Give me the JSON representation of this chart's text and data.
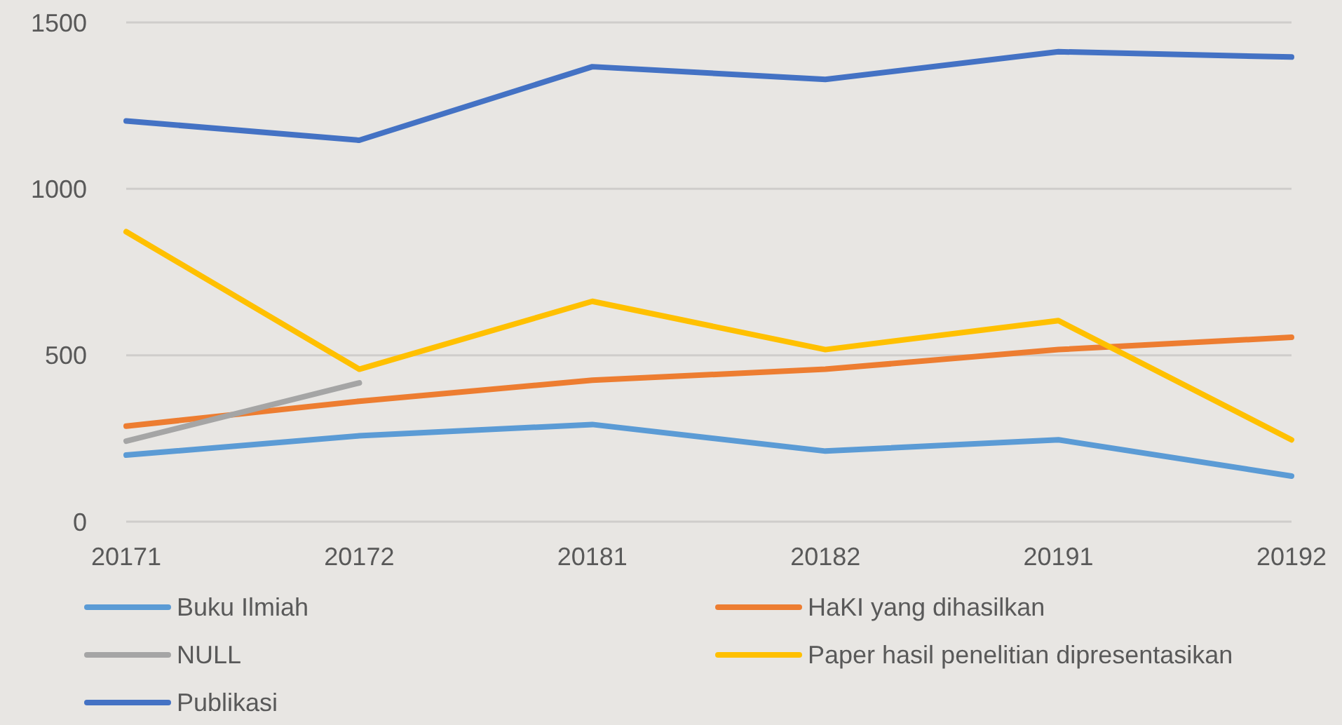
{
  "chart_data": {
    "type": "line",
    "categories": [
      "20171",
      "20172",
      "20181",
      "20182",
      "20191",
      "20192"
    ],
    "series": [
      {
        "name": "Buku Ilmiah",
        "color": "#5b9bd5",
        "values": [
          200,
          258,
          292,
          212,
          246,
          137
        ]
      },
      {
        "name": "HaKI yang dihasilkan",
        "color": "#ed7d31",
        "values": [
          287,
          362,
          425,
          458,
          517,
          554
        ]
      },
      {
        "name": "NULL",
        "color": "#a5a5a5",
        "values": [
          242,
          417,
          null,
          null,
          null,
          null
        ]
      },
      {
        "name": "Paper hasil penelitian dipresentasikan",
        "color": "#ffc000",
        "values": [
          871,
          458,
          662,
          517,
          604,
          246
        ]
      },
      {
        "name": "Publikasi",
        "color": "#4472c4",
        "values": [
          1204,
          1146,
          1367,
          1329,
          1412,
          1396
        ]
      }
    ],
    "ylim": [
      0,
      1500
    ],
    "yticks": [
      0,
      500,
      1000,
      1500
    ],
    "grid": "y",
    "legend": "bottom",
    "marker": "none",
    "line_style": "solid"
  }
}
